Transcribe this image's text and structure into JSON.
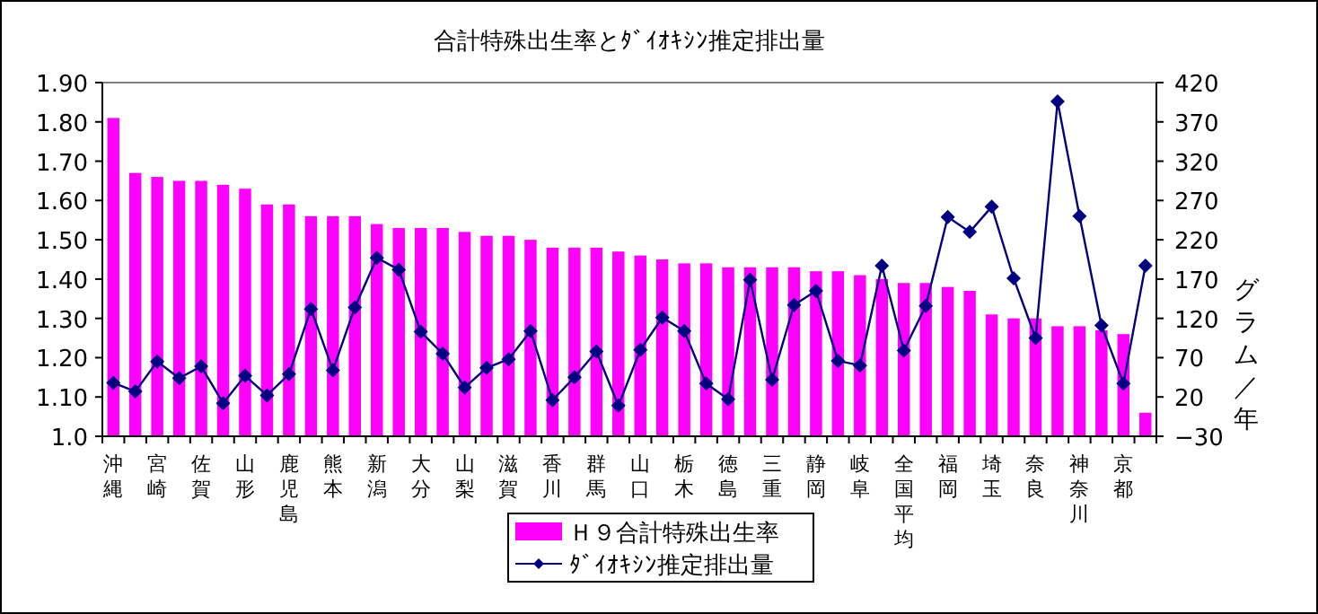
{
  "chart_data": {
    "type": "bar",
    "title": "合計特殊出生率とﾀﾞｲｵｷｼﾝ推定排出量",
    "y2label": "グラム／年",
    "categories": [
      "沖縄",
      null,
      "宮崎",
      null,
      "佐賀",
      null,
      "山形",
      null,
      "鹿児島",
      null,
      "熊本",
      null,
      "新潟",
      null,
      "大分",
      null,
      "山梨",
      null,
      "滋賀",
      null,
      "香川",
      null,
      "群馬",
      null,
      "山口",
      null,
      "栃木",
      null,
      "徳島",
      null,
      "三重",
      null,
      "静岡",
      null,
      "岐阜",
      null,
      "全国平均",
      null,
      "福岡",
      null,
      "埼玉",
      null,
      "奈良",
      null,
      "神奈川",
      null,
      "京都",
      null
    ],
    "series": [
      {
        "name": "Ｈ９合計特殊出生率",
        "color": "#ff00ff",
        "values": [
          1.81,
          1.67,
          1.66,
          1.65,
          1.65,
          1.64,
          1.63,
          1.59,
          1.59,
          1.56,
          1.56,
          1.56,
          1.54,
          1.53,
          1.53,
          1.53,
          1.52,
          1.51,
          1.51,
          1.5,
          1.48,
          1.48,
          1.48,
          1.47,
          1.46,
          1.45,
          1.44,
          1.44,
          1.43,
          1.43,
          1.43,
          1.43,
          1.42,
          1.42,
          1.41,
          1.4,
          1.39,
          1.39,
          1.38,
          1.37,
          1.31,
          1.3,
          1.3,
          1.28,
          1.28,
          1.27,
          1.26,
          1.06
        ]
      },
      {
        "name": "ﾀﾞｲｵｷｼﾝ推定排出量",
        "type": "line",
        "axis": "y2",
        "color": "#000080",
        "marker": "diamond",
        "values": [
          38,
          27,
          65,
          44,
          59,
          12,
          47,
          22,
          49,
          132,
          54,
          134,
          197,
          182,
          103,
          75,
          32,
          57,
          68,
          104,
          16,
          45,
          78,
          9,
          80,
          121,
          104,
          37,
          17,
          169,
          42,
          137,
          155,
          66,
          60,
          187,
          79,
          136,
          249,
          230,
          262,
          171,
          95,
          396,
          250,
          111,
          37,
          187
        ]
      }
    ],
    "ylim": [
      1.0,
      1.9
    ],
    "yticks": [
      {
        "value": 1.0,
        "label": "1.0"
      },
      {
        "value": 1.1,
        "label": "1.10"
      },
      {
        "value": 1.2,
        "label": "1.20"
      },
      {
        "value": 1.3,
        "label": "1.30"
      },
      {
        "value": 1.4,
        "label": "1.40"
      },
      {
        "value": 1.5,
        "label": "1.50"
      },
      {
        "value": 1.6,
        "label": "1.60"
      },
      {
        "value": 1.7,
        "label": "1.70"
      },
      {
        "value": 1.8,
        "label": "1.80"
      },
      {
        "value": 1.9,
        "label": "1.90"
      }
    ],
    "y2lim": [
      -30,
      420
    ],
    "y2ticks": [
      {
        "value": -30,
        "label": "−30"
      },
      20,
      70,
      120,
      170,
      220,
      270,
      320,
      370,
      420
    ],
    "legend": "bottom",
    "grid": false
  }
}
